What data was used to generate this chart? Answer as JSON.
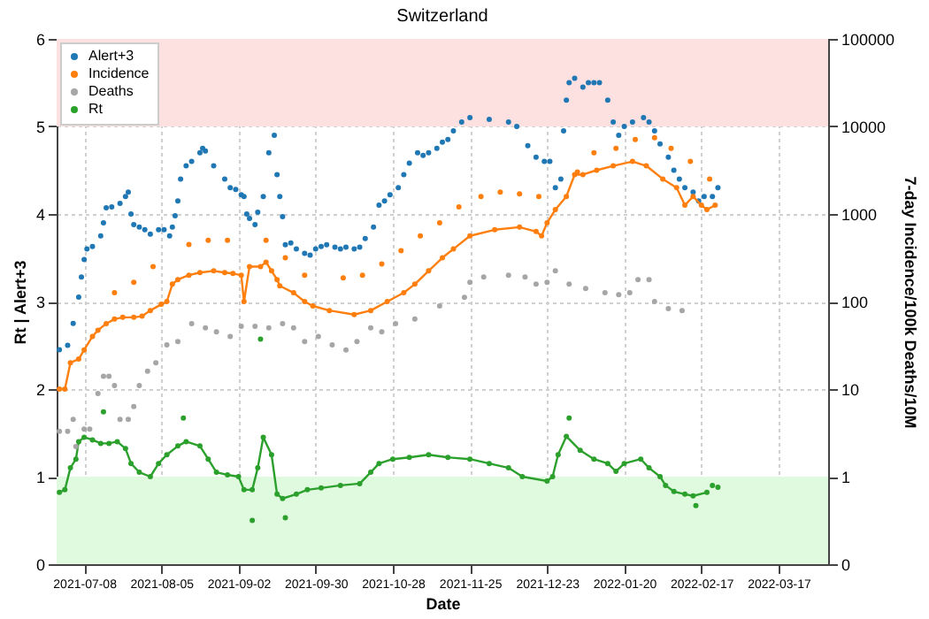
{
  "chart_data": {
    "type": "scatter",
    "title": "Switzerland",
    "xlabel": "Date",
    "ylabel": "Rt | Alert+3",
    "y2label": "7-day Incidence/100k Deaths/10M",
    "xlim": [
      "2021-06-28",
      "2022-04-04"
    ],
    "xticks": [
      "2021-07-08",
      "2021-08-05",
      "2021-09-02",
      "2021-09-30",
      "2021-10-28",
      "2021-11-25",
      "2021-12-23",
      "2022-01-20",
      "2022-02-17",
      "2022-03-17"
    ],
    "ylim": [
      0,
      6
    ],
    "yticks": [
      0,
      1,
      2,
      3,
      4,
      5,
      6
    ],
    "y2lim": [
      0.1,
      100000
    ],
    "y2ticks": [
      {
        "value": 0.1,
        "label": "0"
      },
      1,
      10,
      100,
      1000,
      10000,
      100000
    ],
    "log": "y2",
    "grid": true,
    "legend": "top left",
    "marker": "circle",
    "bands": [
      {
        "axis": "y",
        "from": 5,
        "to": 6,
        "color": "#fde0e0"
      },
      {
        "axis": "y",
        "from": 0,
        "to": 1,
        "color": "#e0fae0"
      }
    ],
    "series": [
      {
        "name": "Alert+3",
        "color": "#1f77b4",
        "x": [
          "2021-06-29",
          "2021-07-02",
          "2021-07-04",
          "2021-07-06",
          "2021-07-07",
          "2021-07-08",
          "2021-07-09",
          "2021-07-11",
          "2021-07-14",
          "2021-07-15",
          "2021-07-16",
          "2021-07-18",
          "2021-07-21",
          "2021-07-23",
          "2021-07-24",
          "2021-07-25",
          "2021-07-26",
          "2021-07-28",
          "2021-07-30",
          "2021-08-01",
          "2021-08-04",
          "2021-08-06",
          "2021-08-08",
          "2021-08-09",
          "2021-08-10",
          "2021-08-11",
          "2021-08-12",
          "2021-08-14",
          "2021-08-16",
          "2021-08-19",
          "2021-08-20",
          "2021-08-21",
          "2021-08-24",
          "2021-08-28",
          "2021-08-30",
          "2021-09-01",
          "2021-09-03",
          "2021-09-04",
          "2021-09-05",
          "2021-09-06",
          "2021-09-08",
          "2021-09-09",
          "2021-09-11",
          "2021-09-13",
          "2021-09-15",
          "2021-09-16",
          "2021-09-17",
          "2021-09-18",
          "2021-09-19",
          "2021-09-21",
          "2021-09-23",
          "2021-09-26",
          "2021-09-28",
          "2021-09-30",
          "2021-10-02",
          "2021-10-04",
          "2021-10-07",
          "2021-10-09",
          "2021-10-11",
          "2021-10-14",
          "2021-10-16",
          "2021-10-18",
          "2021-10-21",
          "2021-10-23",
          "2021-10-25",
          "2021-10-27",
          "2021-10-30",
          "2021-11-01",
          "2021-11-03",
          "2021-11-06",
          "2021-11-08",
          "2021-11-10",
          "2021-11-13",
          "2021-11-15",
          "2021-11-17",
          "2021-11-19",
          "2021-11-22",
          "2021-11-25",
          "2021-12-02",
          "2021-12-09",
          "2021-12-12",
          "2021-12-16",
          "2021-12-19",
          "2021-12-22",
          "2021-12-24",
          "2021-12-26",
          "2021-12-28",
          "2021-12-29",
          "2021-12-30",
          "2021-12-31",
          "2022-01-02",
          "2022-01-05",
          "2022-01-07",
          "2022-01-09",
          "2022-01-11",
          "2022-01-14",
          "2022-01-16",
          "2022-01-18",
          "2022-01-20",
          "2022-01-23",
          "2022-01-27",
          "2022-01-29",
          "2022-01-31",
          "2022-02-02",
          "2022-02-05",
          "2022-02-07",
          "2022-02-09",
          "2022-02-11",
          "2022-02-14",
          "2022-02-16",
          "2022-02-18",
          "2022-02-21",
          "2022-02-23"
        ],
        "values": [
          2.45,
          2.5,
          2.75,
          3.05,
          3.28,
          3.48,
          3.6,
          3.63,
          3.75,
          3.9,
          4.07,
          4.08,
          4.12,
          4.2,
          4.25,
          4.0,
          3.88,
          3.85,
          3.82,
          3.77,
          3.82,
          3.82,
          3.75,
          3.85,
          3.98,
          4.15,
          4.4,
          4.55,
          4.6,
          4.7,
          4.75,
          4.72,
          4.55,
          4.4,
          4.3,
          4.28,
          4.22,
          4.2,
          4.0,
          3.95,
          3.88,
          4.02,
          4.2,
          4.7,
          4.9,
          4.45,
          4.2,
          3.97,
          3.65,
          3.67,
          3.6,
          3.55,
          3.53,
          3.6,
          3.63,
          3.65,
          3.62,
          3.6,
          3.62,
          3.6,
          3.62,
          3.72,
          3.85,
          4.1,
          4.15,
          4.22,
          4.3,
          4.45,
          4.58,
          4.7,
          4.67,
          4.7,
          4.75,
          4.82,
          4.85,
          4.95,
          5.05,
          5.1,
          5.08,
          5.05,
          5.0,
          4.78,
          4.65,
          4.6,
          4.6,
          4.3,
          4.4,
          4.95,
          5.3,
          5.5,
          5.55,
          5.45,
          5.5,
          5.5,
          5.5,
          5.3,
          5.05,
          4.9,
          5.0,
          5.05,
          5.1,
          5.05,
          4.95,
          4.8,
          4.65,
          4.5,
          4.4,
          4.3,
          4.25,
          4.15,
          4.2,
          4.2,
          4.3
        ]
      },
      {
        "name": "Incidence",
        "color": "#ff7f0e",
        "axis": "y2",
        "x": [
          "2021-06-29",
          "2021-07-01",
          "2021-07-03",
          "2021-07-06",
          "2021-07-08",
          "2021-07-11",
          "2021-07-13",
          "2021-07-16",
          "2021-07-19",
          "2021-07-19",
          "2021-07-22",
          "2021-07-26",
          "2021-07-26",
          "2021-07-29",
          "2021-08-01",
          "2021-08-02",
          "2021-08-05",
          "2021-08-07",
          "2021-08-09",
          "2021-08-11",
          "2021-08-15",
          "2021-08-15",
          "2021-08-19",
          "2021-08-22",
          "2021-08-24",
          "2021-08-28",
          "2021-08-29",
          "2021-08-31",
          "2021-09-03",
          "2021-09-04",
          "2021-09-06",
          "2021-09-10",
          "2021-09-12",
          "2021-09-12",
          "2021-09-14",
          "2021-09-16",
          "2021-09-17",
          "2021-09-19",
          "2021-09-22",
          "2021-09-26",
          "2021-09-26",
          "2021-09-29",
          "2021-10-05",
          "2021-10-10",
          "2021-10-14",
          "2021-10-17",
          "2021-10-20",
          "2021-10-24",
          "2021-10-26",
          "2021-10-31",
          "2021-11-01",
          "2021-11-05",
          "2021-11-07",
          "2021-11-10",
          "2021-11-14",
          "2021-11-15",
          "2021-11-19",
          "2021-11-21",
          "2021-11-25",
          "2021-11-29",
          "2021-12-04",
          "2021-12-06",
          "2021-12-13",
          "2021-12-13",
          "2021-12-19",
          "2021-12-20",
          "2021-12-21",
          "2021-12-23",
          "2021-12-26",
          "2021-12-30",
          "2022-01-02",
          "2022-01-03",
          "2022-01-05",
          "2022-01-09",
          "2022-01-10",
          "2022-01-16",
          "2022-01-17",
          "2022-01-23",
          "2022-01-24",
          "2022-01-28",
          "2022-01-31",
          "2022-02-03",
          "2022-02-06",
          "2022-02-08",
          "2022-02-11",
          "2022-02-13",
          "2022-02-14",
          "2022-02-17",
          "2022-02-19",
          "2022-02-20",
          "2022-02-22"
        ],
        "values": [
          10,
          10,
          20,
          22,
          28,
          40,
          47,
          56,
          63,
          126,
          66,
          66,
          166,
          68,
          79,
          251,
          93,
          100,
          158,
          178,
          200,
          447,
          214,
          501,
          224,
          214,
          501,
          209,
          200,
          100,
          251,
          251,
          282,
          501,
          224,
          178,
          151,
          316,
          126,
          100,
          200,
          89,
          79,
          186,
          71,
          200,
          79,
          269,
          100,
          380,
          126,
          158,
          562,
          224,
          794,
          316,
          398,
          1202,
          562,
          1585,
          661,
          1778,
          708,
          1698,
          631,
          1585,
          562,
          794,
          1122,
          1585,
          2818,
          3020,
          2818,
          5012,
          3162,
          3548,
          5623,
          3981,
          7079,
          3548,
          7413,
          2512,
          5623,
          1995,
          1259,
          3981,
          1585,
          1259,
          1122,
          2512,
          1259
        ]
      },
      {
        "color": "#ff7f0e",
        "type": "line",
        "marker": "none",
        "axis": "y2",
        "x": [
          "2021-06-29",
          "2021-07-01",
          "2021-07-03",
          "2021-07-06",
          "2021-07-08",
          "2021-07-11",
          "2021-07-13",
          "2021-07-16",
          "2021-07-19",
          "2021-07-22",
          "2021-07-26",
          "2021-07-29",
          "2021-08-01",
          "2021-08-05",
          "2021-08-07",
          "2021-08-09",
          "2021-08-11",
          "2021-08-15",
          "2021-08-19",
          "2021-08-24",
          "2021-08-28",
          "2021-08-31",
          "2021-09-03",
          "2021-09-04",
          "2021-09-06",
          "2021-09-10",
          "2021-09-12",
          "2021-09-14",
          "2021-09-16",
          "2021-09-17",
          "2021-09-22",
          "2021-09-26",
          "2021-09-29",
          "2021-10-05",
          "2021-10-14",
          "2021-10-20",
          "2021-10-26",
          "2021-11-01",
          "2021-11-05",
          "2021-11-10",
          "2021-11-15",
          "2021-11-19",
          "2021-11-25",
          "2021-12-04",
          "2021-12-13",
          "2021-12-19",
          "2021-12-21",
          "2021-12-23",
          "2021-12-26",
          "2021-12-30",
          "2022-01-02",
          "2022-01-05",
          "2022-01-10",
          "2022-01-16",
          "2022-01-23",
          "2022-01-28",
          "2022-02-03",
          "2022-02-08",
          "2022-02-11",
          "2022-02-14",
          "2022-02-17",
          "2022-02-19",
          "2022-02-22"
        ],
        "values": [
          10,
          10,
          20,
          22,
          28,
          40,
          47,
          56,
          63,
          66,
          66,
          68,
          79,
          93,
          100,
          158,
          178,
          200,
          214,
          224,
          214,
          209,
          200,
          100,
          251,
          251,
          282,
          224,
          178,
          151,
          126,
          100,
          89,
          79,
          71,
          79,
          100,
          126,
          158,
          224,
          316,
          398,
          562,
          661,
          708,
          631,
          562,
          794,
          1122,
          1585,
          2818,
          2818,
          3162,
          3548,
          3981,
          3548,
          2512,
          1995,
          1259,
          1585,
          1259,
          1122,
          1259
        ]
      },
      {
        "name": "Deaths",
        "color": "#a6a6a6",
        "axis": "y2",
        "x": [
          "2021-06-29",
          "2021-07-02",
          "2021-07-04",
          "2021-07-05",
          "2021-07-08",
          "2021-07-10",
          "2021-07-13",
          "2021-07-15",
          "2021-07-17",
          "2021-07-19",
          "2021-07-21",
          "2021-07-24",
          "2021-07-26",
          "2021-07-28",
          "2021-07-31",
          "2021-08-03",
          "2021-08-07",
          "2021-08-11",
          "2021-08-16",
          "2021-08-21",
          "2021-08-25",
          "2021-08-30",
          "2021-09-03",
          "2021-09-08",
          "2021-09-13",
          "2021-09-18",
          "2021-09-22",
          "2021-09-26",
          "2021-10-01",
          "2021-10-06",
          "2021-10-11",
          "2021-10-15",
          "2021-10-20",
          "2021-10-24",
          "2021-10-29",
          "2021-11-05",
          "2021-11-14",
          "2021-11-23",
          "2021-11-25",
          "2021-11-30",
          "2021-12-09",
          "2021-12-15",
          "2021-12-19",
          "2021-12-23",
          "2021-12-26",
          "2021-12-31",
          "2022-01-06",
          "2022-01-13",
          "2022-01-18",
          "2022-01-22",
          "2022-01-25",
          "2022-01-29",
          "2022-01-31",
          "2022-02-05",
          "2022-02-10"
        ],
        "values": [
          3.3,
          3.3,
          4.5,
          2.2,
          3.5,
          3.5,
          8.9,
          14,
          14,
          11,
          4.5,
          4.5,
          6.3,
          11,
          16,
          20,
          32,
          35,
          56,
          50,
          45,
          40,
          52,
          52,
          50,
          56,
          50,
          35,
          40,
          32,
          28,
          35,
          50,
          45,
          56,
          63,
          89,
          112,
          166,
          191,
          200,
          191,
          158,
          166,
          224,
          158,
          141,
          126,
          120,
          126,
          178,
          178,
          100,
          83,
          79
        ]
      },
      {
        "name": "Rt",
        "color": "#2ca02c",
        "x": [
          "2021-06-29",
          "2021-07-01",
          "2021-07-03",
          "2021-07-05",
          "2021-07-06",
          "2021-07-08",
          "2021-07-11",
          "2021-07-14",
          "2021-07-15",
          "2021-07-17",
          "2021-07-20",
          "2021-07-23",
          "2021-07-25",
          "2021-07-28",
          "2021-08-01",
          "2021-08-04",
          "2021-08-07",
          "2021-08-11",
          "2021-08-13",
          "2021-08-14",
          "2021-08-19",
          "2021-08-22",
          "2021-08-25",
          "2021-08-29",
          "2021-09-02",
          "2021-09-04",
          "2021-09-07",
          "2021-09-07",
          "2021-09-09",
          "2021-09-10",
          "2021-09-11",
          "2021-09-14",
          "2021-09-16",
          "2021-09-18",
          "2021-09-19",
          "2021-09-23",
          "2021-09-27",
          "2021-10-02",
          "2021-10-09",
          "2021-10-16",
          "2021-10-20",
          "2021-10-23",
          "2021-10-28",
          "2021-11-03",
          "2021-11-10",
          "2021-11-17",
          "2021-11-25",
          "2021-12-02",
          "2021-12-09",
          "2021-12-14",
          "2021-12-23",
          "2021-12-25",
          "2021-12-27",
          "2021-12-30",
          "2021-12-31",
          "2022-01-04",
          "2022-01-09",
          "2022-01-14",
          "2022-01-17",
          "2022-01-20",
          "2022-01-26",
          "2022-01-29",
          "2022-02-02",
          "2022-02-04",
          "2022-02-07",
          "2022-02-11",
          "2022-02-14",
          "2022-02-15",
          "2022-02-19",
          "2022-02-21",
          "2022-02-23"
        ],
        "values": [
          0.82,
          0.85,
          1.1,
          1.2,
          1.4,
          1.45,
          1.42,
          1.38,
          1.74,
          1.38,
          1.4,
          1.32,
          1.15,
          1.05,
          1.0,
          1.15,
          1.25,
          1.35,
          1.67,
          1.4,
          1.35,
          1.2,
          1.05,
          1.02,
          1.0,
          0.85,
          0.85,
          0.5,
          1.1,
          2.57,
          1.45,
          1.25,
          0.8,
          0.75,
          0.53,
          0.8,
          0.85,
          0.87,
          0.9,
          0.92,
          1.05,
          1.15,
          1.2,
          1.22,
          1.25,
          1.22,
          1.2,
          1.15,
          1.1,
          1.0,
          0.95,
          1.0,
          1.25,
          1.46,
          1.67,
          1.3,
          1.2,
          1.15,
          1.06,
          1.15,
          1.2,
          1.1,
          1.0,
          0.9,
          0.83,
          0.8,
          0.78,
          0.67,
          0.82,
          0.9,
          0.88
        ]
      },
      {
        "color": "#2ca02c",
        "type": "line",
        "marker": "none",
        "x": [
          "2021-06-29",
          "2021-07-01",
          "2021-07-03",
          "2021-07-05",
          "2021-07-06",
          "2021-07-08",
          "2021-07-11",
          "2021-07-14",
          "2021-07-17",
          "2021-07-20",
          "2021-07-23",
          "2021-07-25",
          "2021-07-28",
          "2021-08-01",
          "2021-08-04",
          "2021-08-07",
          "2021-08-11",
          "2021-08-14",
          "2021-08-19",
          "2021-08-22",
          "2021-08-25",
          "2021-08-29",
          "2021-09-02",
          "2021-09-04",
          "2021-09-07",
          "2021-09-09",
          "2021-09-11",
          "2021-09-14",
          "2021-09-16",
          "2021-09-18",
          "2021-09-23",
          "2021-09-27",
          "2021-10-02",
          "2021-10-09",
          "2021-10-16",
          "2021-10-20",
          "2021-10-23",
          "2021-10-28",
          "2021-11-03",
          "2021-11-10",
          "2021-11-17",
          "2021-11-25",
          "2021-12-02",
          "2021-12-09",
          "2021-12-14",
          "2021-12-23",
          "2021-12-25",
          "2021-12-27",
          "2021-12-30",
          "2022-01-04",
          "2022-01-09",
          "2022-01-14",
          "2022-01-17",
          "2022-01-20",
          "2022-01-26",
          "2022-01-29",
          "2022-02-02",
          "2022-02-04",
          "2022-02-07",
          "2022-02-11",
          "2022-02-14",
          "2022-02-19"
        ],
        "values": [
          0.82,
          0.85,
          1.1,
          1.2,
          1.4,
          1.45,
          1.42,
          1.38,
          1.38,
          1.4,
          1.32,
          1.15,
          1.05,
          1.0,
          1.15,
          1.25,
          1.35,
          1.4,
          1.35,
          1.2,
          1.05,
          1.02,
          1.0,
          0.85,
          0.85,
          1.1,
          1.45,
          1.25,
          0.8,
          0.75,
          0.8,
          0.85,
          0.87,
          0.9,
          0.92,
          1.05,
          1.15,
          1.2,
          1.22,
          1.25,
          1.22,
          1.2,
          1.15,
          1.1,
          1.0,
          0.95,
          1.0,
          1.25,
          1.46,
          1.3,
          1.2,
          1.15,
          1.06,
          1.15,
          1.2,
          1.1,
          1.0,
          0.9,
          0.83,
          0.8,
          0.78,
          0.82
        ]
      }
    ]
  }
}
